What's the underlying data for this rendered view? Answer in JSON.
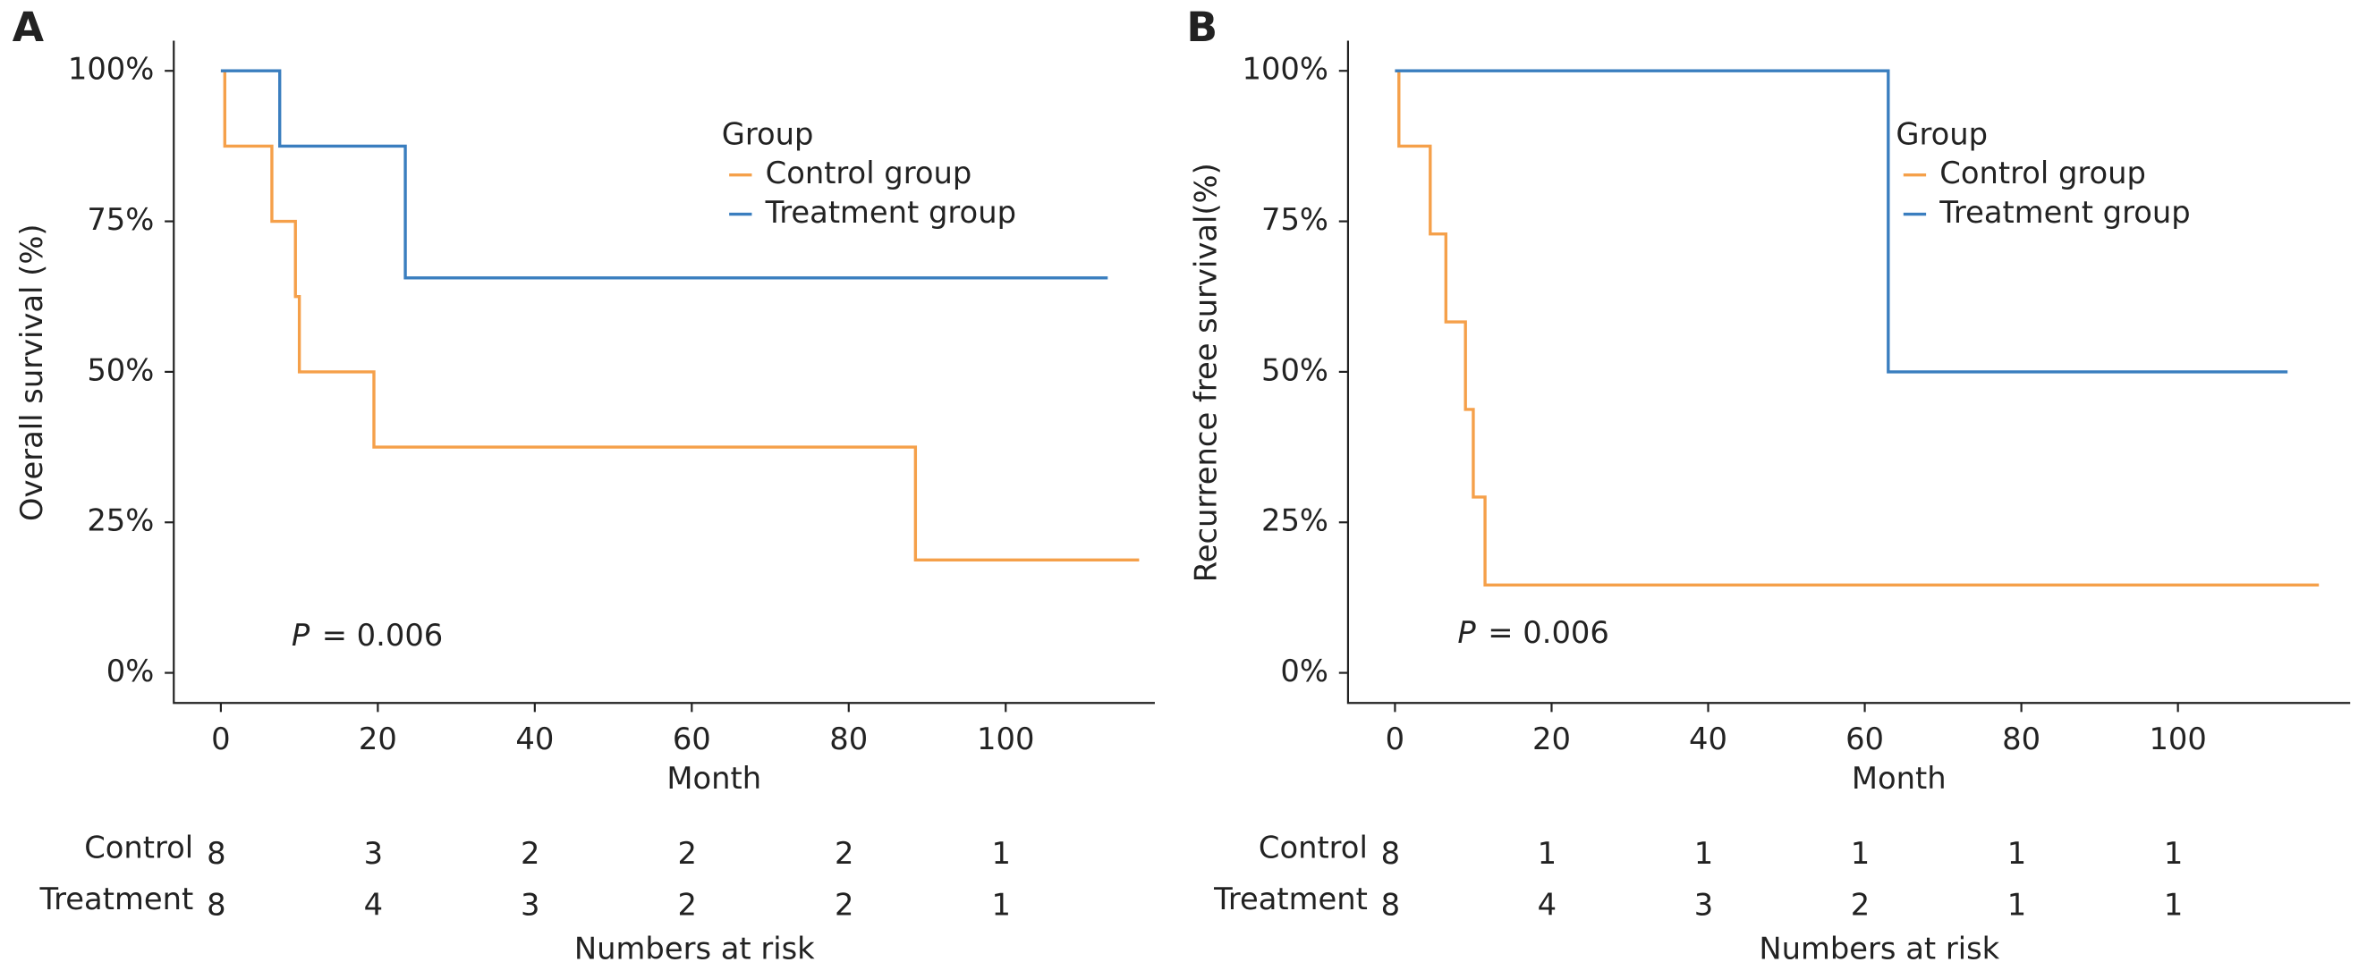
{
  "chart_data": [
    {
      "type": "step",
      "panel_label": "A",
      "ylabel": "Overall survival (%)",
      "xlabel": "Month",
      "xlim": [
        -6,
        119
      ],
      "ylim": [
        -5,
        105
      ],
      "xticks": [
        0,
        20,
        40,
        60,
        80,
        100
      ],
      "yticks": [
        {
          "value": 0,
          "label": "0%"
        },
        {
          "value": 25,
          "label": "25%"
        },
        {
          "value": 50,
          "label": "50%"
        },
        {
          "value": 75,
          "label": "75%"
        },
        {
          "value": 100,
          "label": "100%"
        }
      ],
      "legend_title": "Group",
      "legend": "upper right",
      "series": [
        {
          "name": "Control group",
          "color": "#f5a04a",
          "x": [
            0,
            0.5,
            6.5,
            9.5,
            10,
            19.5,
            88.5,
            117
          ],
          "values": [
            100,
            87.5,
            75,
            62.5,
            50,
            37.5,
            18.75,
            18.75
          ]
        },
        {
          "name": "Treatment group",
          "color": "#3a7ebf",
          "x": [
            0,
            7.5,
            23.5,
            113
          ],
          "values": [
            100,
            87.5,
            65.6,
            65.6
          ]
        }
      ],
      "annotation": {
        "italic": "P",
        "text": "= 0.006",
        "x": 9,
        "y": 6
      },
      "risk_table": {
        "label": "Numbers at risk",
        "rows": [
          {
            "name": "Control",
            "values": [
              8,
              3,
              2,
              2,
              2,
              1
            ]
          },
          {
            "name": "Treatment",
            "values": [
              8,
              4,
              3,
              2,
              2,
              1
            ]
          }
        ]
      }
    },
    {
      "type": "step",
      "panel_label": "B",
      "ylabel": "Recurrence free survival(%)",
      "xlabel": "Month",
      "xlim": [
        -6,
        122
      ],
      "ylim": [
        -5,
        105
      ],
      "xticks": [
        0,
        20,
        40,
        60,
        80,
        100
      ],
      "yticks": [
        {
          "value": 0,
          "label": "0%"
        },
        {
          "value": 25,
          "label": "25%"
        },
        {
          "value": 50,
          "label": "50%"
        },
        {
          "value": 75,
          "label": "75%"
        },
        {
          "value": 100,
          "label": "100%"
        }
      ],
      "legend_title": "Group",
      "legend": "upper right",
      "series": [
        {
          "name": "Control group",
          "color": "#f5a04a",
          "x": [
            0,
            0.5,
            4.5,
            6.5,
            9,
            10,
            11.5,
            118
          ],
          "values": [
            100,
            87.5,
            72.9,
            58.3,
            43.75,
            29.2,
            14.6,
            14.6
          ]
        },
        {
          "name": "Treatment group",
          "color": "#3a7ebf",
          "x": [
            0,
            63,
            114
          ],
          "values": [
            100,
            50,
            50
          ]
        }
      ],
      "annotation": {
        "italic": "P",
        "text": "= 0.006",
        "x": 8,
        "y": 6.5
      },
      "risk_table": {
        "label": "Numbers at risk",
        "rows": [
          {
            "name": "Control",
            "values": [
              8,
              1,
              1,
              1,
              1,
              1
            ]
          },
          {
            "name": "Treatment",
            "values": [
              8,
              4,
              3,
              2,
              1,
              1
            ]
          }
        ]
      }
    }
  ]
}
